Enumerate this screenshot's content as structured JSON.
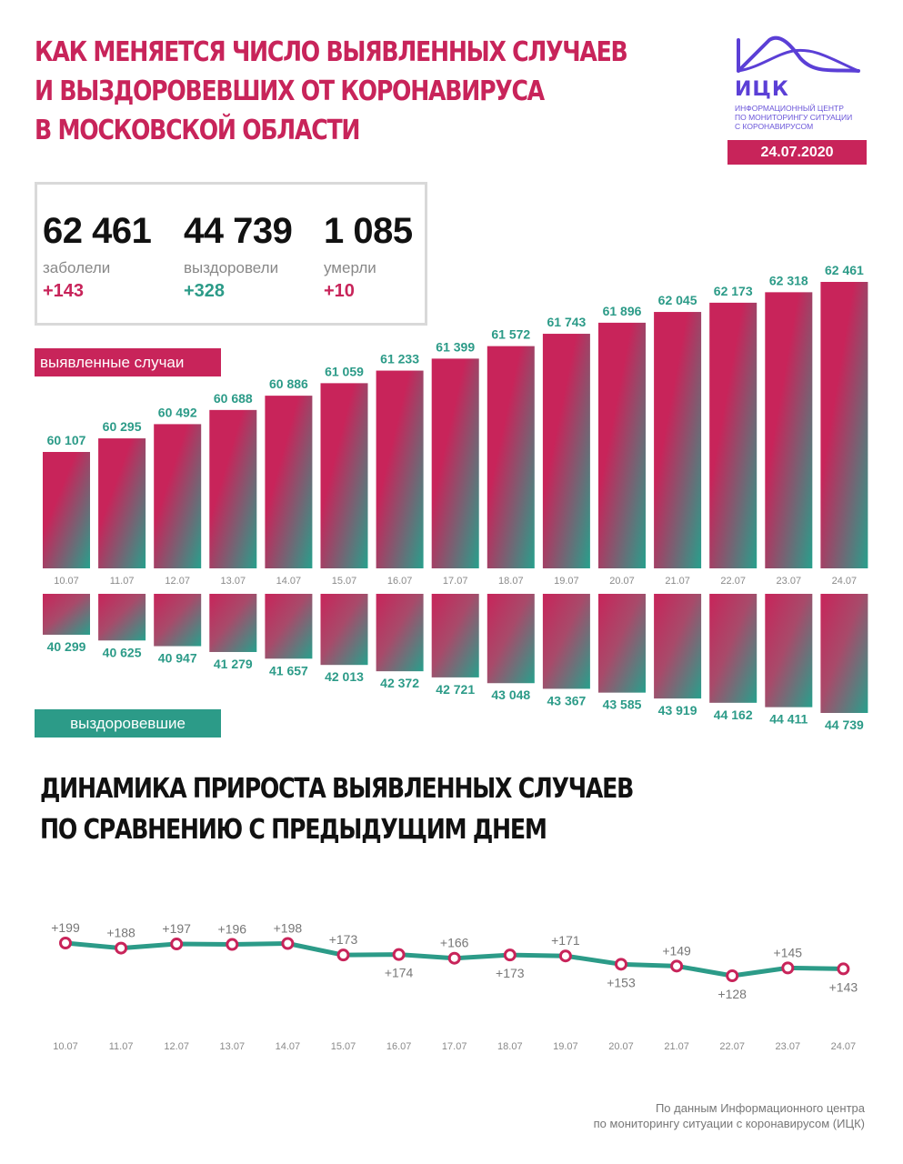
{
  "header": {
    "title_lines": [
      "КАК МЕНЯЕТСЯ ЧИСЛО ВЫЯВЛЕННЫХ СЛУЧАЕВ",
      "И ВЫЗДОРОВЕВШИХ ОТ КОРОНАВИРУСА",
      "В МОСКОВСКОЙ ОБЛАСТИ"
    ],
    "date": "24.07.2020"
  },
  "logo": {
    "abbr": "ИЦК",
    "caption_lines": [
      "Информационный центр",
      "по мониторингу ситуации",
      "с коронавирусом"
    ]
  },
  "stats": {
    "infected": {
      "value": "62 461",
      "label": "заболели",
      "delta": "+143"
    },
    "recovered": {
      "value": "44 739",
      "label": "выздоровели",
      "delta": "+328"
    },
    "deaths": {
      "value": "1 085",
      "label": "умерли",
      "delta": "+10"
    }
  },
  "labels": {
    "cases": "выявленные случаи",
    "recovered": "выздоровевшие"
  },
  "section2": {
    "title_lines": [
      "ДИНАМИКА ПРИРОСТА ВЫЯВЛЕННЫХ СЛУЧАЕВ",
      "ПО СРАВНЕНИЮ С ПРЕДЫДУЩИМ ДНЕМ"
    ]
  },
  "footer": {
    "lines": [
      "По данным Информационного центра",
      "по мониторингу ситуации с коронавирусом (ИЦК)"
    ]
  },
  "colors": {
    "accent": "#c8245a",
    "teal": "#2c9b88",
    "logo": "#5b3fd6"
  },
  "chart_data": [
    {
      "type": "bar",
      "categories": [
        "10.07",
        "11.07",
        "12.07",
        "13.07",
        "14.07",
        "15.07",
        "16.07",
        "17.07",
        "18.07",
        "19.07",
        "20.07",
        "21.07",
        "22.07",
        "23.07",
        "24.07"
      ],
      "series": [
        {
          "name": "выявленные случаи",
          "values": [
            60107,
            60295,
            60492,
            60688,
            60886,
            61059,
            61233,
            61399,
            61572,
            61743,
            61896,
            62045,
            62173,
            62318,
            62461
          ],
          "labels": [
            "60 107",
            "60 295",
            "60 492",
            "60 688",
            "60 886",
            "61 059",
            "61 233",
            "61 399",
            "61 572",
            "61 743",
            "61 896",
            "62 045",
            "62 173",
            "62 318",
            "62 461"
          ]
        },
        {
          "name": "выздоровевшие",
          "values": [
            40299,
            40625,
            40947,
            41279,
            41657,
            42013,
            42372,
            42721,
            43048,
            43367,
            43585,
            43919,
            44162,
            44411,
            44739
          ],
          "labels": [
            "40 299",
            "40 625",
            "40 947",
            "41 279",
            "41 657",
            "42 013",
            "42 372",
            "42 721",
            "43 048",
            "43 367",
            "43 585",
            "43 919",
            "44 162",
            "44 411",
            "44 739"
          ]
        }
      ]
    },
    {
      "type": "line",
      "categories": [
        "10.07",
        "11.07",
        "12.07",
        "13.07",
        "14.07",
        "15.07",
        "16.07",
        "17.07",
        "18.07",
        "19.07",
        "20.07",
        "21.07",
        "22.07",
        "23.07",
        "24.07"
      ],
      "values": [
        199,
        188,
        197,
        196,
        198,
        173,
        174,
        166,
        173,
        171,
        153,
        149,
        128,
        145,
        143
      ],
      "labels": [
        "+199",
        "+188",
        "+197",
        "+196",
        "+198",
        "+173",
        "+174",
        "+166",
        "+173",
        "+171",
        "+153",
        "+149",
        "+128",
        "+145",
        "+143"
      ],
      "label_positions": [
        "above",
        "above",
        "above",
        "above",
        "above",
        "above",
        "below",
        "above",
        "below",
        "above",
        "below",
        "above",
        "below",
        "above",
        "below"
      ]
    }
  ]
}
